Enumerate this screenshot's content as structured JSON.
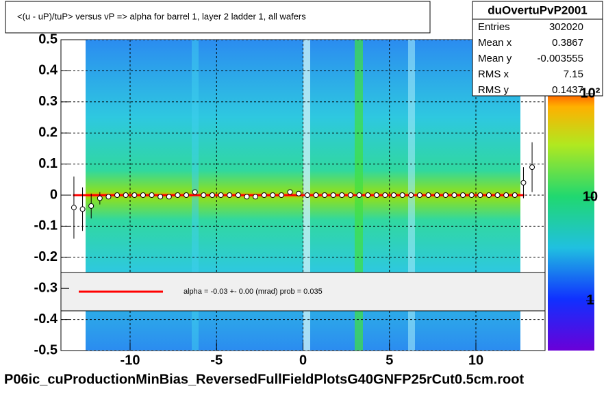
{
  "chart_data": {
    "type": "profile2d",
    "title": "<(u - uP)/tuP>  versus   vP => alpha for barrel 1, layer 2 ladder 1, all wafers",
    "footer": "P06ic_cuProductionMinBias_ReversedFullFieldPlotsG40GNFP25rCut0.5cm.root",
    "stats": {
      "name": "duOvertuPvP2001",
      "rows": [
        [
          "Entries",
          "302020"
        ],
        [
          "Mean x",
          "0.3867"
        ],
        [
          "Mean y",
          "-0.003555"
        ],
        [
          "RMS x",
          "7.15"
        ],
        [
          "RMS y",
          "0.1437"
        ]
      ]
    },
    "legend": {
      "label": "alpha =   -0.03 +-  0.00 (mrad) prob = 0.035",
      "color": "#ff0000"
    },
    "xlim": [
      -14,
      14
    ],
    "xticks": [
      -10,
      -5,
      0,
      5,
      10
    ],
    "ylim": [
      -0.5,
      0.5
    ],
    "yticks": [
      -0.5,
      -0.4,
      -0.3,
      -0.2,
      -0.1,
      0,
      0.1,
      0.2,
      0.3,
      0.4,
      0.5
    ],
    "zlim": [
      0.33,
      100
    ],
    "zlog": true,
    "zticks": [
      1,
      10,
      {
        "value": 100,
        "label": "10²"
      }
    ],
    "grid": true,
    "profile": {
      "x": [
        -13.25,
        -12.75,
        -12.25,
        -11.75,
        -11.25,
        -10.75,
        -10.25,
        -9.75,
        -9.25,
        -8.75,
        -8.25,
        -7.75,
        -7.25,
        -6.75,
        -6.25,
        -5.75,
        -5.25,
        -4.75,
        -4.25,
        -3.75,
        -3.25,
        -2.75,
        -2.25,
        -1.75,
        -1.25,
        -0.75,
        -0.25,
        0.25,
        0.75,
        1.25,
        1.75,
        2.25,
        2.75,
        3.25,
        3.75,
        4.25,
        4.75,
        5.25,
        5.75,
        6.25,
        6.75,
        7.25,
        7.75,
        8.25,
        8.75,
        9.25,
        9.75,
        10.25,
        10.75,
        11.25,
        11.75,
        12.25,
        12.75,
        13.25
      ],
      "values": [
        -0.04,
        -0.045,
        -0.035,
        -0.01,
        -0.005,
        0,
        0,
        0,
        0,
        0,
        -0.005,
        -0.005,
        0,
        0,
        0.01,
        0,
        0,
        0,
        0,
        0,
        -0.005,
        -0.005,
        0,
        0,
        0,
        0.01,
        0.005,
        0,
        0,
        0,
        0,
        0,
        0,
        0,
        0,
        0,
        0,
        0,
        0,
        0,
        0,
        0,
        0,
        0,
        0,
        0,
        0,
        0,
        0,
        0,
        0,
        0,
        0.04,
        0.09
      ],
      "errors": [
        0.1,
        0.07,
        0.04,
        0.02,
        0.005,
        0.005,
        0.005,
        0.005,
        0.005,
        0.005,
        0.005,
        0.005,
        0.005,
        0.005,
        0.005,
        0.005,
        0.005,
        0.005,
        0.005,
        0.005,
        0.005,
        0.005,
        0.005,
        0.005,
        0.005,
        0.005,
        0.005,
        0.005,
        0.005,
        0.005,
        0.005,
        0.005,
        0.005,
        0.005,
        0.005,
        0.005,
        0.005,
        0.005,
        0.005,
        0.005,
        0.005,
        0.005,
        0.005,
        0.005,
        0.005,
        0.005,
        0.005,
        0.005,
        0.005,
        0.005,
        0.005,
        0.005,
        0.05,
        0.08
      ]
    },
    "fit": {
      "x": [
        -13.3,
        12.8
      ],
      "y": [
        0,
        0
      ],
      "color": "#ff0000"
    }
  }
}
